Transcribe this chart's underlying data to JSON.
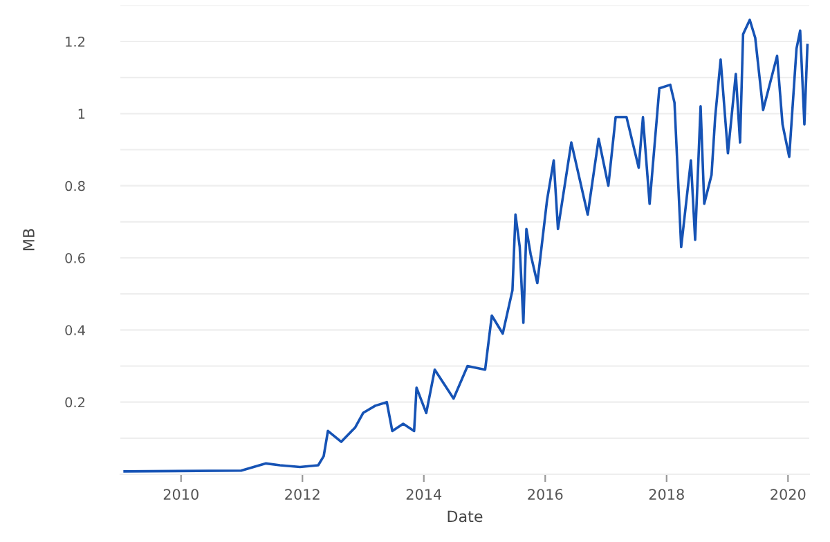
{
  "chart_data": {
    "type": "line",
    "xlabel": "Date",
    "ylabel": "MB",
    "x": [
      2009.07,
      2010.99,
      2011.4,
      2011.63,
      2011.96,
      2012.26,
      2012.35,
      2012.42,
      2012.64,
      2012.87,
      2013.0,
      2013.2,
      2013.39,
      2013.48,
      2013.66,
      2013.84,
      2013.88,
      2014.04,
      2014.18,
      2014.49,
      2014.72,
      2015.01,
      2015.12,
      2015.3,
      2015.46,
      2015.51,
      2015.58,
      2015.64,
      2015.69,
      2015.76,
      2015.87,
      2016.03,
      2016.14,
      2016.21,
      2016.43,
      2016.7,
      2016.88,
      2017.04,
      2017.16,
      2017.34,
      2017.54,
      2017.61,
      2017.72,
      2017.88,
      2018.06,
      2018.13,
      2018.24,
      2018.4,
      2018.47,
      2018.56,
      2018.62,
      2018.74,
      2018.8,
      2018.89,
      2019.01,
      2019.14,
      2019.21,
      2019.26,
      2019.37,
      2019.46,
      2019.59,
      2019.82,
      2019.91,
      2020.02,
      2020.14,
      2020.2,
      2020.27,
      2020.32
    ],
    "series": [
      {
        "color": "#1653b5",
        "values": [
          0.008,
          0.01,
          0.03,
          0.025,
          0.02,
          0.025,
          0.05,
          0.12,
          0.09,
          0.13,
          0.17,
          0.19,
          0.2,
          0.12,
          0.14,
          0.12,
          0.24,
          0.17,
          0.29,
          0.21,
          0.3,
          0.29,
          0.44,
          0.39,
          0.51,
          0.72,
          0.63,
          0.42,
          0.68,
          0.61,
          0.53,
          0.76,
          0.87,
          0.68,
          0.92,
          0.72,
          0.93,
          0.8,
          0.99,
          0.99,
          0.85,
          0.99,
          0.75,
          1.07,
          1.08,
          1.03,
          0.63,
          0.87,
          0.65,
          1.02,
          0.75,
          0.83,
          0.99,
          1.15,
          0.89,
          1.11,
          0.92,
          1.22,
          1.26,
          1.21,
          1.01,
          1.16,
          0.97,
          0.88,
          1.18,
          1.23,
          0.97,
          1.19
        ]
      }
    ],
    "xlim": [
      2009.0,
      2020.35
    ],
    "xticks": [
      2010,
      2012,
      2014,
      2016,
      2018,
      2020
    ],
    "ylim": [
      0,
      1.3
    ],
    "yticks": [
      {
        "value": 0,
        "label": null
      },
      {
        "value": 0.1,
        "label": null
      },
      0.2,
      {
        "value": 0.3,
        "label": null
      },
      0.4,
      {
        "value": 0.5,
        "label": null
      },
      0.6,
      {
        "value": 0.7,
        "label": null
      },
      0.8,
      {
        "value": 0.9,
        "label": null
      },
      1,
      {
        "value": 1.1,
        "label": null
      },
      1.2,
      {
        "value": 1.3,
        "label": null
      }
    ],
    "grid": "y"
  }
}
